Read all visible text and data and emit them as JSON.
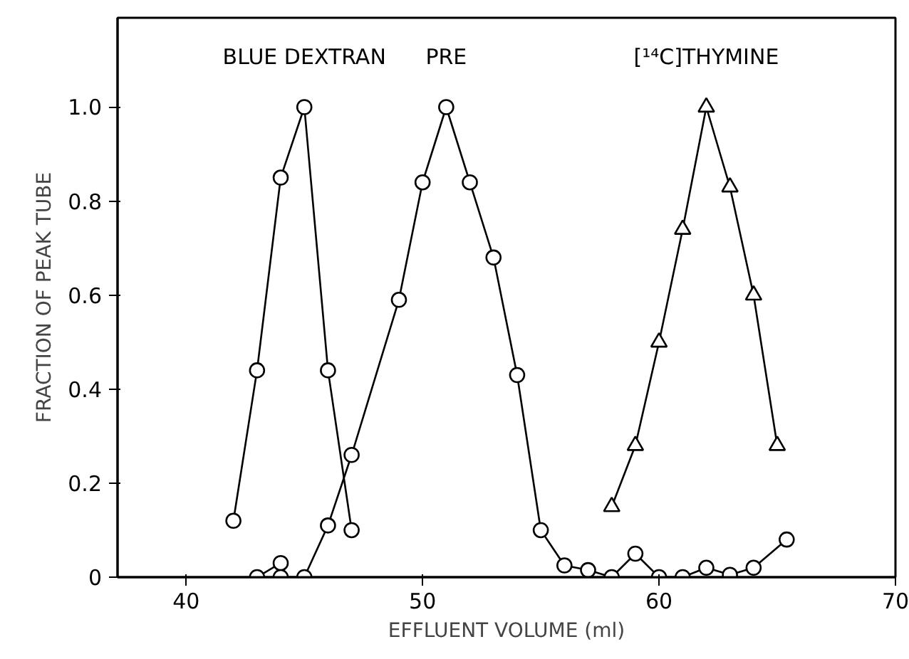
{
  "chart_data": {
    "type": "line",
    "xlabel": "EFFLUENT VOLUME (ml)",
    "ylabel": "FRACTION OF PEAK TUBE",
    "xlim": [
      37.1,
      70
    ],
    "xticks": [
      40,
      50,
      60,
      70
    ],
    "annotations": [
      "0"
    ],
    "ylim": [
      0,
      1.19
    ],
    "yticks": [
      0,
      0.2,
      0.4,
      0.6,
      0.8,
      {
        "value": 1,
        "label": "1.0"
      }
    ],
    "grid": false,
    "line_style": "solid",
    "series": [
      {
        "name": "BLUE DEXTRAN",
        "color": "#000000",
        "marker": "circle",
        "x": [
          42,
          43,
          44,
          45,
          46,
          47
        ],
        "values": [
          0.12,
          0.44,
          0.85,
          1.0,
          0.44,
          0.1
        ]
      },
      {
        "name": "PRE",
        "color": "#000000",
        "marker": "circle",
        "x": [
          43,
          44,
          44,
          45,
          46,
          47,
          49,
          50,
          51,
          52,
          53,
          54,
          55,
          56,
          57,
          58,
          59,
          60,
          61,
          62,
          63,
          64,
          65.4
        ],
        "values": [
          0,
          0.03,
          0,
          0,
          0.11,
          0.26,
          0.59,
          0.84,
          1.0,
          0.84,
          0.68,
          0.43,
          0.1,
          0.025,
          0.015,
          0,
          0.05,
          0,
          0,
          0.02,
          0.005,
          0.02,
          0.08
        ]
      },
      {
        "name": "[¹⁴C]THYMINE",
        "color": "#000000",
        "marker": "triangle",
        "x": [
          58,
          59,
          60,
          61,
          62,
          63,
          64,
          65
        ],
        "values": [
          0.15,
          0.28,
          0.5,
          0.74,
          1.0,
          0.83,
          0.6,
          0.28
        ]
      }
    ]
  }
}
